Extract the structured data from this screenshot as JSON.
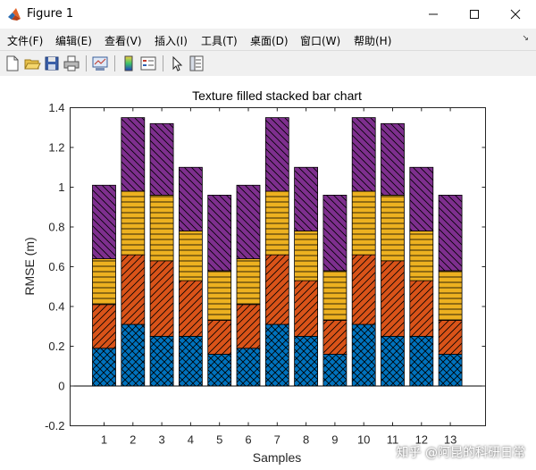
{
  "window": {
    "title": "Figure 1"
  },
  "menubar": {
    "items": [
      "文件(F)",
      "编辑(E)",
      "查看(V)",
      "插入(I)",
      "工具(T)",
      "桌面(D)",
      "窗口(W)",
      "帮助(H)"
    ]
  },
  "toolbar": {
    "icons": [
      "new-figure-icon",
      "open-file-icon",
      "save-icon",
      "print-icon",
      "link-plot-icon",
      "colorbar-icon",
      "legend-icon",
      "pointer-icon",
      "property-inspector-icon"
    ]
  },
  "watermark": "知乎 @阿昆的科研日常",
  "colors": {
    "seg1": "#0072BD",
    "seg2": "#D95319",
    "seg3": "#EDB120",
    "seg4": "#7E2F8E"
  },
  "chart_data": {
    "type": "bar",
    "stacked": true,
    "title": "Texture filled stacked bar chart",
    "xlabel": "Samples",
    "ylabel": "RMSE (m)",
    "ylim": [
      -0.2,
      1.4
    ],
    "yticks": [
      "-0.2",
      "0",
      "0.2",
      "0.4",
      "0.6",
      "0.8",
      "1",
      "1.2",
      "1.4"
    ],
    "categories": [
      "1",
      "2",
      "3",
      "4",
      "5",
      "6",
      "7",
      "8",
      "9",
      "10",
      "11",
      "12",
      "13"
    ],
    "hatch": [
      "crosshatch",
      "diagonal-up",
      "horizontal",
      "diagonal-down"
    ],
    "series": [
      {
        "values": [
          0.19,
          0.31,
          0.25,
          0.25,
          0.16,
          0.19,
          0.31,
          0.25,
          0.16,
          0.31,
          0.25,
          0.25,
          0.16
        ]
      },
      {
        "values": [
          0.22,
          0.35,
          0.38,
          0.28,
          0.17,
          0.22,
          0.35,
          0.28,
          0.17,
          0.35,
          0.38,
          0.28,
          0.17
        ]
      },
      {
        "values": [
          0.23,
          0.32,
          0.33,
          0.25,
          0.25,
          0.23,
          0.32,
          0.25,
          0.25,
          0.32,
          0.33,
          0.25,
          0.25
        ]
      },
      {
        "values": [
          0.37,
          0.37,
          0.36,
          0.32,
          0.38,
          0.37,
          0.37,
          0.32,
          0.38,
          0.37,
          0.36,
          0.32,
          0.38
        ]
      }
    ]
  }
}
